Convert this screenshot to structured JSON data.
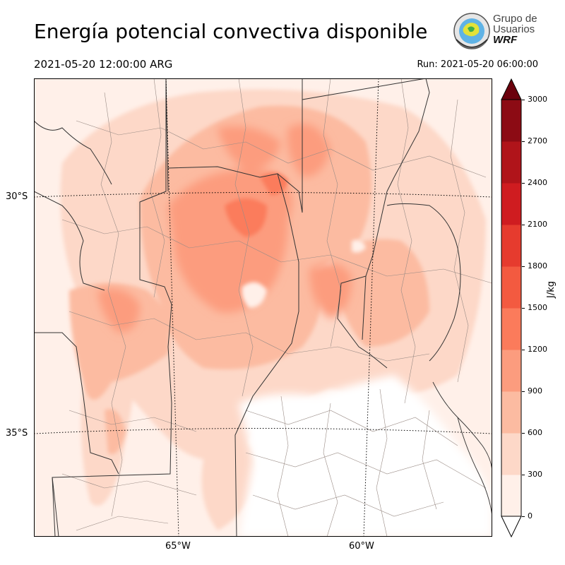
{
  "header": {
    "title": "Energía potencial convectiva disponible",
    "valid_time": "2021-05-20 12:00:00 ARG",
    "run_time": "Run: 2021-05-20 06:00:00"
  },
  "logo": {
    "line1": "Grupo de",
    "line2": "Usuarios",
    "line3": "WRF"
  },
  "map": {
    "lat_labels": [
      "30°S",
      "35°S"
    ],
    "lon_labels": [
      "65°W",
      "60°W"
    ]
  },
  "colorbar": {
    "unit": "J/kg",
    "ticks": [
      "0",
      "300",
      "600",
      "900",
      "1200",
      "1500",
      "1800",
      "2100",
      "2400",
      "2700",
      "3000"
    ],
    "colors": [
      "#fff0e9",
      "#fdd8c8",
      "#fcbba1",
      "#fc9c7e",
      "#fb7b5b",
      "#f35a40",
      "#e63b2e",
      "#cf1c20",
      "#b0141a",
      "#8c0b14",
      "#6b010d"
    ],
    "over_color": "#6b010d",
    "under_color": "#ffffff"
  }
}
